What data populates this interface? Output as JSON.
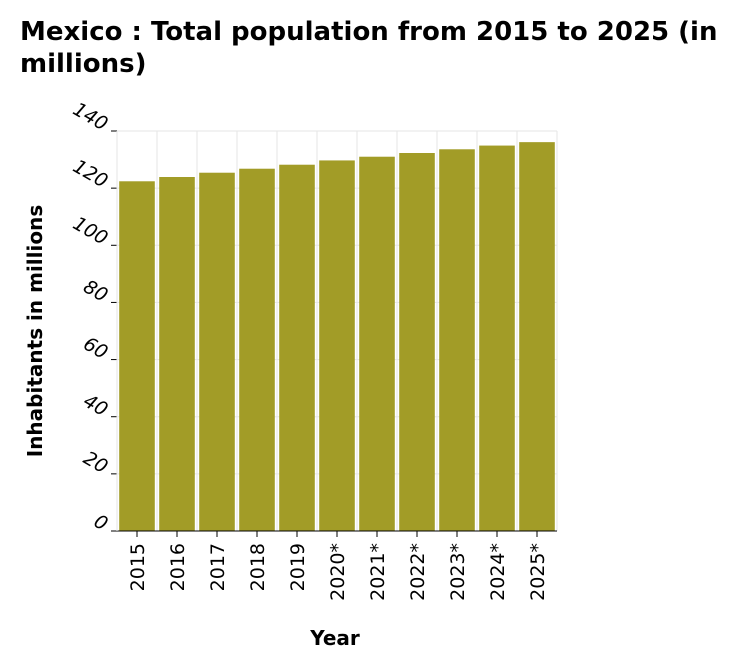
{
  "chart_data": {
    "type": "bar",
    "title": "Mexico : Total population from 2015 to 2025 (in millions)",
    "xlabel": "Year",
    "ylabel": "Inhabitants in millions",
    "categories": [
      "2015",
      "2016",
      "2017",
      "2018",
      "2019",
      "2020*",
      "2021*",
      "2022*",
      "2023*",
      "2024*",
      "2025*"
    ],
    "values": [
      122.4,
      123.9,
      125.4,
      126.8,
      128.2,
      129.7,
      131.0,
      132.3,
      133.6,
      134.9,
      136.1
    ],
    "ylim": [
      0,
      140
    ],
    "yticks": [
      0,
      20,
      40,
      60,
      80,
      100,
      120,
      140
    ],
    "grid": true,
    "bar_color": "#a29c27",
    "grid_color": "#e6e6e6"
  }
}
